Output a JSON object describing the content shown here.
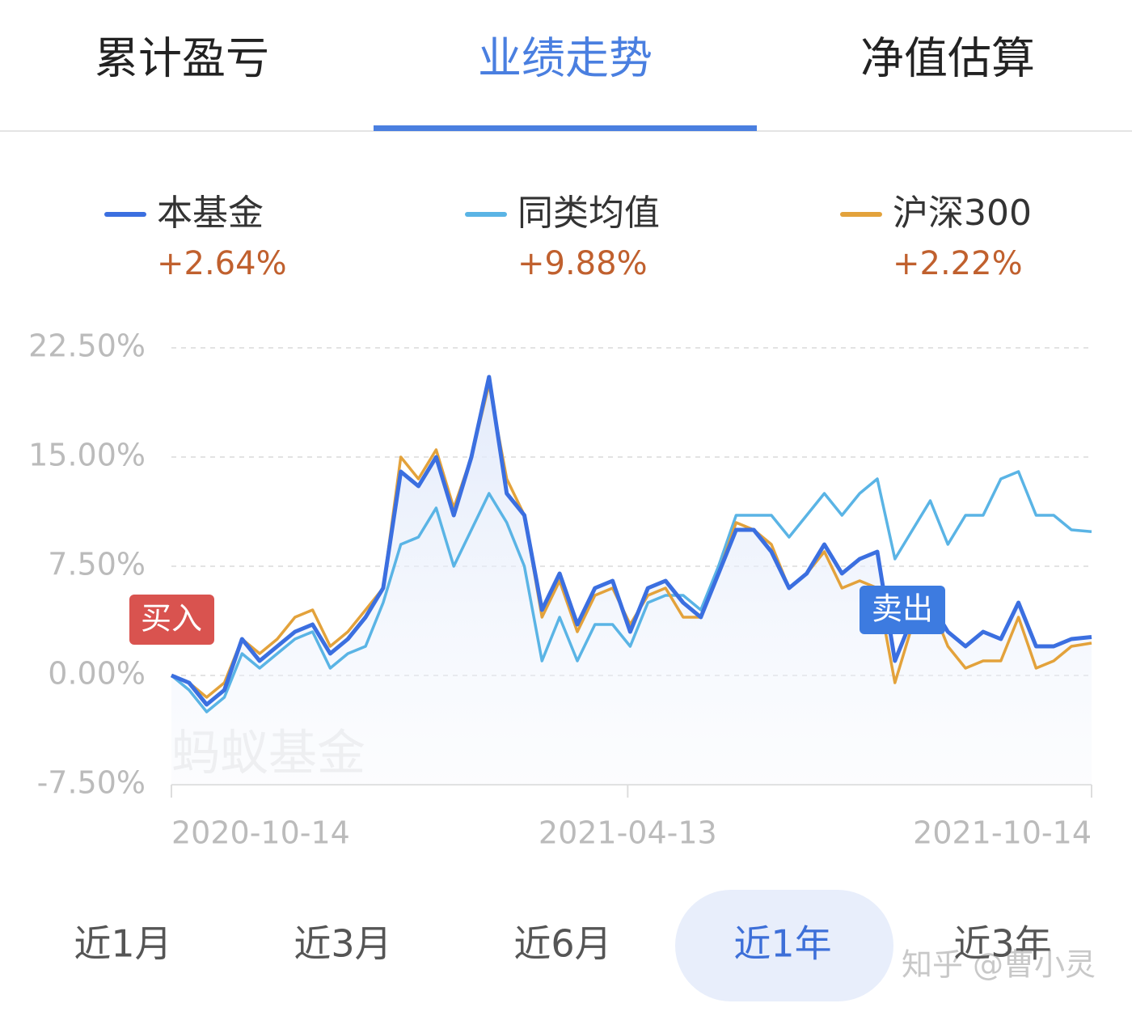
{
  "tabs": {
    "items": [
      "累计盈亏",
      "业绩走势",
      "净值估算"
    ],
    "active": 1
  },
  "chart_data": {
    "type": "line",
    "x": [
      "2020-10-14",
      "2020-10-21",
      "2020-10-28",
      "2020-11-04",
      "2020-11-11",
      "2020-11-18",
      "2020-11-25",
      "2020-12-02",
      "2020-12-09",
      "2020-12-16",
      "2020-12-23",
      "2020-12-30",
      "2021-01-06",
      "2021-01-13",
      "2021-01-20",
      "2021-01-27",
      "2021-02-03",
      "2021-02-10",
      "2021-02-17",
      "2021-02-24",
      "2021-03-03",
      "2021-03-10",
      "2021-03-17",
      "2021-03-24",
      "2021-03-31",
      "2021-04-07",
      "2021-04-14",
      "2021-04-21",
      "2021-04-28",
      "2021-05-05",
      "2021-05-12",
      "2021-05-19",
      "2021-05-26",
      "2021-06-02",
      "2021-06-09",
      "2021-06-16",
      "2021-06-23",
      "2021-06-30",
      "2021-07-07",
      "2021-07-14",
      "2021-07-21",
      "2021-07-28",
      "2021-08-04",
      "2021-08-11",
      "2021-08-18",
      "2021-08-25",
      "2021-09-01",
      "2021-09-08",
      "2021-09-15",
      "2021-09-22",
      "2021-09-29",
      "2021-10-06",
      "2021-10-14"
    ],
    "series": [
      {
        "name": "本基金",
        "summary": "+2.64%",
        "color": "#3b6fe0",
        "values": [
          0,
          -0.5,
          -2,
          -1,
          2.5,
          1,
          2,
          3,
          3.5,
          1.5,
          2.5,
          4,
          6,
          14,
          13,
          15,
          11,
          15,
          20.5,
          12.5,
          11,
          4.5,
          7,
          3.5,
          6,
          6.5,
          3,
          6,
          6.5,
          5,
          4,
          7,
          10,
          10,
          8.5,
          6,
          7,
          9,
          7,
          8,
          8.5,
          1,
          4,
          5,
          3,
          2,
          3,
          2.5,
          5,
          2,
          2,
          2.5,
          2.64
        ]
      },
      {
        "name": "同类均值",
        "summary": "+9.88%",
        "color": "#5ab4e5",
        "values": [
          0,
          -1,
          -2.5,
          -1.5,
          1.5,
          0.5,
          1.5,
          2.5,
          3,
          0.5,
          1.5,
          2,
          5,
          9,
          9.5,
          11.5,
          7.5,
          10,
          12.5,
          10.5,
          7.5,
          1,
          4,
          1,
          3.5,
          3.5,
          2,
          5,
          5.5,
          5.5,
          4.5,
          7.5,
          11,
          11,
          11,
          9.5,
          11,
          12.5,
          11,
          12.5,
          13.5,
          8,
          10,
          12,
          9,
          11,
          11,
          13.5,
          14,
          11,
          11,
          10,
          9.88
        ]
      },
      {
        "name": "沪深300",
        "summary": "+2.22%",
        "color": "#e3a23b",
        "values": [
          0,
          -0.5,
          -1.5,
          -0.5,
          2.5,
          1.5,
          2.5,
          4,
          4.5,
          2,
          3,
          4.5,
          6,
          15,
          13.5,
          15.5,
          11.5,
          15,
          20,
          13.5,
          11,
          4,
          6.5,
          3,
          5.5,
          6,
          3.5,
          5.5,
          6,
          4,
          4,
          7,
          10.5,
          10,
          9,
          6,
          7,
          8.5,
          6,
          6.5,
          6,
          -0.5,
          3.5,
          5,
          2,
          0.5,
          1,
          1,
          4,
          0.5,
          1,
          2,
          2.22
        ]
      }
    ],
    "xlim": [
      "2020-10-14",
      "2021-10-14"
    ],
    "xticks": [
      "2020-10-14",
      "2021-04-13",
      "2021-10-14"
    ],
    "ylim": [
      -7.5,
      22.5
    ],
    "yticks": [
      {
        "value": -7.5,
        "label": "-7.50%"
      },
      {
        "value": 0,
        "label": "0.00%"
      },
      {
        "value": 7.5,
        "label": "7.50%"
      },
      {
        "value": 15,
        "label": "15.00%"
      },
      {
        "value": 22.5,
        "label": "22.50%"
      }
    ],
    "grid": true,
    "annotations": [
      "买入",
      "卖出"
    ],
    "watermark": "蚂蚁基金"
  },
  "periods": {
    "items": [
      "近1月",
      "近3月",
      "近6月",
      "近1年",
      "近3年"
    ],
    "active": 3
  },
  "credit": "知乎 @曹小灵"
}
